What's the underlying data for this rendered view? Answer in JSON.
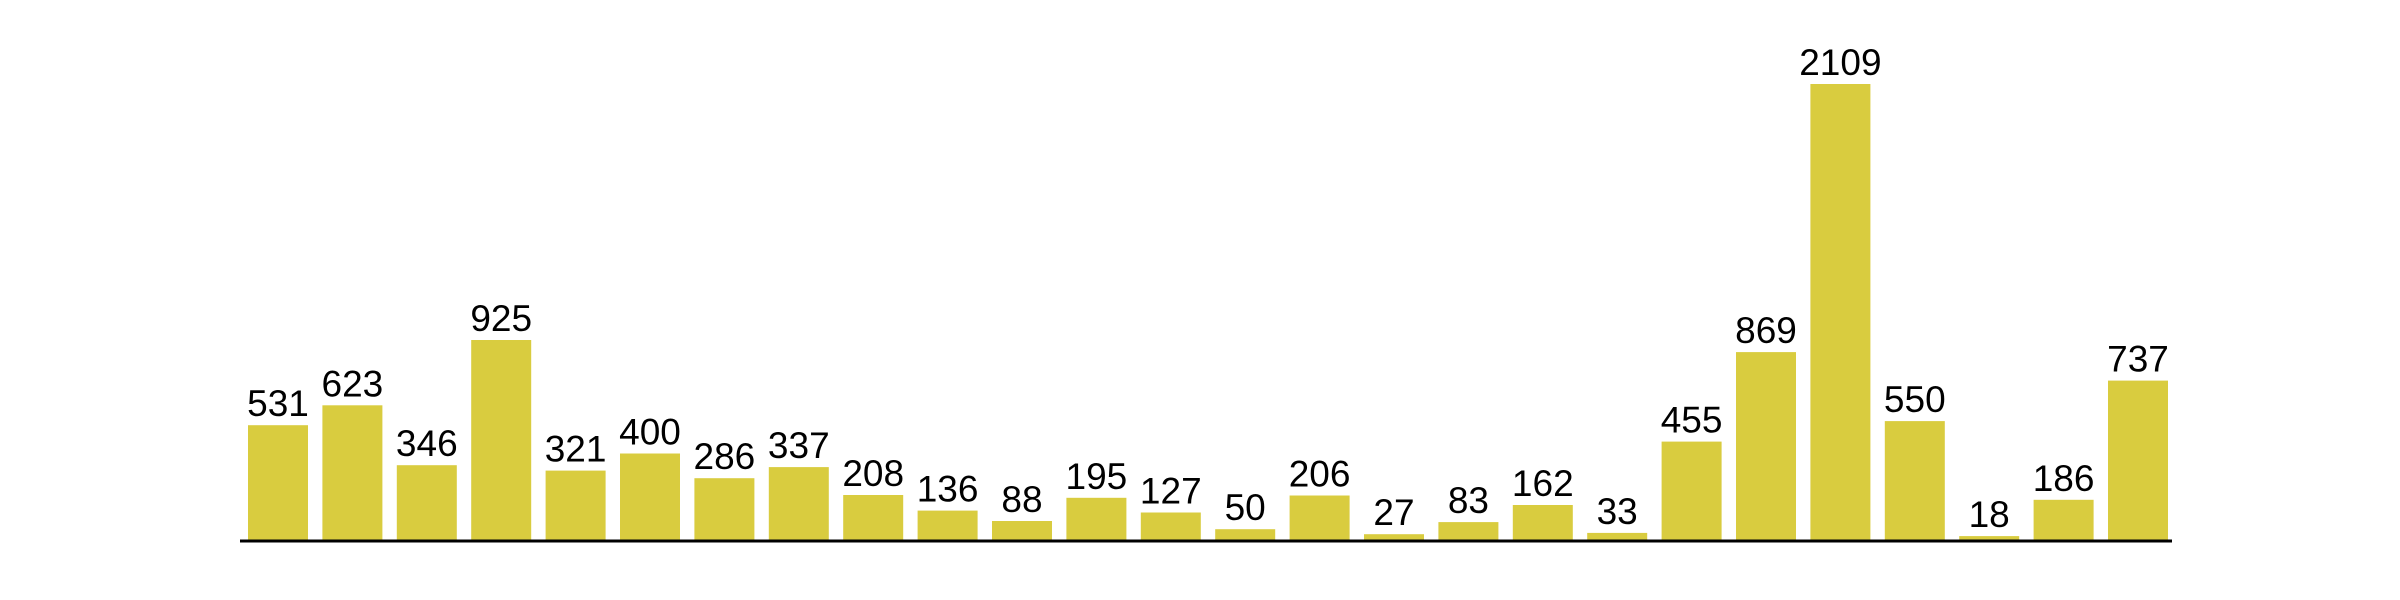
{
  "chart_data": {
    "type": "bar",
    "categories": [
      "",
      "",
      "",
      "",
      "",
      "",
      "",
      "",
      "",
      "",
      "",
      "",
      "",
      "",
      "",
      "",
      "",
      "",
      "",
      "",
      "",
      "",
      "",
      "",
      "",
      ""
    ],
    "values": [
      531,
      623,
      346,
      925,
      321,
      400,
      286,
      337,
      208,
      136,
      88,
      195,
      127,
      50,
      206,
      27,
      83,
      162,
      33,
      455,
      869,
      2109,
      550,
      18,
      186,
      737
    ],
    "data_labels": [
      "531",
      "623",
      "346",
      "925",
      "321",
      "400",
      "286",
      "337",
      "208",
      "136",
      "88",
      "195",
      "127",
      "50",
      "206",
      "27",
      "83",
      "162",
      "33",
      "455",
      "869",
      "2109",
      "550",
      "18",
      "186",
      "737"
    ],
    "title": "",
    "xlabel": "",
    "ylabel": "",
    "ylim": [
      0,
      2109
    ],
    "grid": false,
    "legend": "none",
    "colors": {
      "bar": "#d9cc3f",
      "axis": "#000000",
      "label": "#000000"
    }
  }
}
